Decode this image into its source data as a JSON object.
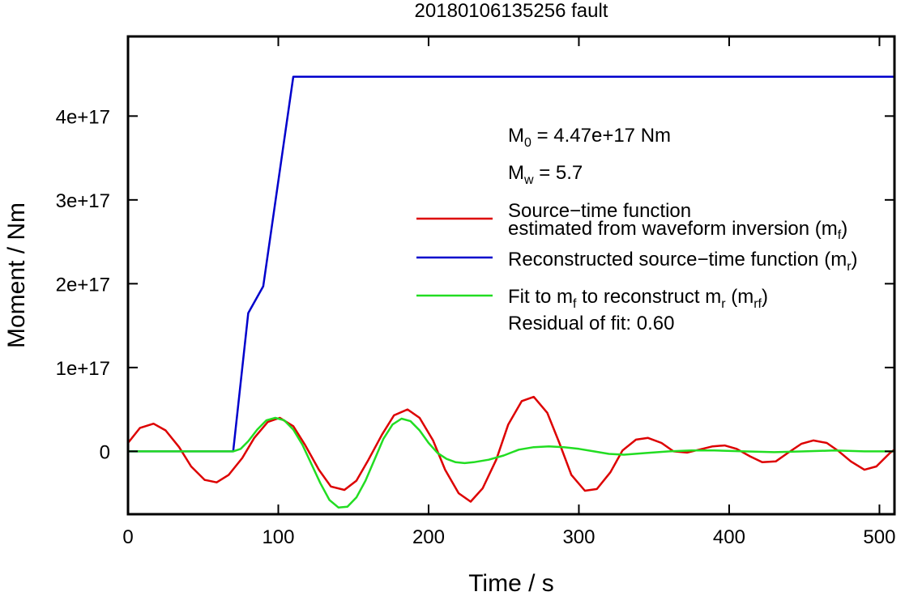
{
  "chart_data": {
    "type": "line",
    "title": "20180106135256 fault",
    "xlabel": "Time / s",
    "ylabel": "Moment / Nm",
    "xlim": [
      0,
      510
    ],
    "ylim": [
      -7.5e+16,
      4.95e+17
    ],
    "xticks": [
      0,
      100,
      200,
      300,
      400,
      500
    ],
    "xtick_labels": [
      "0",
      "100",
      "200",
      "300",
      "400",
      "500"
    ],
    "yticks": [
      0,
      1e+17,
      2e+17,
      3e+17,
      4e+17
    ],
    "ytick_labels": [
      "0",
      "1e+17",
      "2e+17",
      "3e+17",
      "4e+17"
    ],
    "grid": false,
    "legend_position": "right",
    "annotations": {
      "m0_prefix": "M",
      "m0_sub": "0",
      "m0_value": " = 4.47e+17 Nm",
      "mw_prefix": "M",
      "mw_sub": "w",
      "mw_value": " = 5.7",
      "residual": "Residual of fit: 0.60"
    },
    "legend": {
      "red_line1": "Source−time function",
      "red_line2_prefix": "estimated from waveform inversion (m",
      "red_line2_sub": "f",
      "red_line2_suffix": ")",
      "blue_prefix": "Reconstructed source−time function (m",
      "blue_sub": "r",
      "blue_suffix": ")",
      "green_prefix": "Fit to m",
      "green_sub1": "f",
      "green_mid": " to reconstruct m",
      "green_sub2": "r",
      "green_mid2": " (m",
      "green_sub3": "rf",
      "green_suffix": ")"
    },
    "series": [
      {
        "color": "#dd0000",
        "x": [
          0,
          8,
          17,
          25,
          34,
          42,
          51,
          59,
          67,
          76,
          84,
          93,
          101,
          110,
          118,
          127,
          135,
          144,
          152,
          160,
          169,
          177,
          186,
          194,
          203,
          211,
          220,
          228,
          236,
          245,
          253,
          262,
          270,
          279,
          287,
          295,
          304,
          312,
          321,
          329,
          338,
          346,
          355,
          363,
          372,
          380,
          389,
          397,
          405,
          414,
          422,
          431,
          439,
          448,
          456,
          465,
          473,
          481,
          490,
          498,
          507,
          510
        ],
        "values": [
          1e+16,
          2.8e+16,
          3.3e+16,
          2.5e+16,
          5000000000000000.0,
          -1.8e+16,
          -3.4e+16,
          -3.7e+16,
          -2.8e+16,
          -8000000000000000.0,
          1.6e+16,
          3.5e+16,
          4e+16,
          3e+16,
          7000000000000000.0,
          -2.2e+16,
          -4.2e+16,
          -4.6e+16,
          -3.5e+16,
          -1e+16,
          2e+16,
          4.3e+16,
          5e+16,
          4e+16,
          1.3e+16,
          -2.2e+16,
          -5e+16,
          -6e+16,
          -4.4e+16,
          -1e+16,
          3.2e+16,
          6e+16,
          6.5e+16,
          4.6e+16,
          1e+16,
          -2.8e+16,
          -4.7e+16,
          -4.5e+16,
          -2.5e+16,
          1000000000000000.0,
          1.4e+16,
          1.6e+16,
          1e+16,
          0,
          -1500000000000000.0,
          2000000000000000.0,
          6000000000000000.0,
          7000000000000000.0,
          3000000000000000.0,
          -6000000000000000.0,
          -1.3e+16,
          -1.2e+16,
          -2000000000000000.0,
          9000000000000000.0,
          1.3e+16,
          1e+16,
          0,
          -1.2e+16,
          -2.2e+16,
          -1.8e+16,
          -2000000000000000.0,
          2000000000000000.0
        ]
      },
      {
        "color": "#0000cc",
        "x": [
          0,
          70,
          80,
          90,
          110,
          510
        ],
        "values": [
          0,
          0,
          1.65e+17,
          1.97e+17,
          4.47e+17,
          4.47e+17
        ]
      },
      {
        "color": "#22dd22",
        "x": [
          0,
          70,
          75,
          80,
          86,
          92,
          98,
          104,
          110,
          116,
          122,
          128,
          134,
          140,
          146,
          152,
          158,
          164,
          170,
          176,
          182,
          188,
          194,
          200,
          206,
          212,
          218,
          224,
          230,
          240,
          250,
          260,
          270,
          280,
          290,
          300,
          310,
          320,
          330,
          345,
          360,
          375,
          390,
          410,
          430,
          450,
          470,
          490,
          510
        ],
        "values": [
          0,
          0,
          3000000000000000.0,
          1.2e+16,
          2.6e+16,
          3.7e+16,
          4e+16,
          3.7e+16,
          2.6e+16,
          8000000000000000.0,
          -1.5e+16,
          -3.8e+16,
          -5.8e+16,
          -6.7e+16,
          -6.6e+16,
          -5.5e+16,
          -3.5e+16,
          -1e+16,
          1.5e+16,
          3.2e+16,
          3.9e+16,
          3.6e+16,
          2.5e+16,
          1e+16,
          -2000000000000000.0,
          -9000000000000000.0,
          -1.3e+16,
          -1.4e+16,
          -1.3e+16,
          -1e+16,
          -5000000000000000.0,
          2000000000000000.0,
          5000000000000000.0,
          6000000000000000.0,
          5000000000000000.0,
          3000000000000000.0,
          0,
          -3000000000000000.0,
          -4000000000000000.0,
          -2000000000000000.0,
          0,
          1000000000000000.0,
          1000000000000000.0,
          0,
          -1000000000000000.0,
          0,
          1000000000000000.0,
          0,
          0
        ]
      }
    ]
  }
}
